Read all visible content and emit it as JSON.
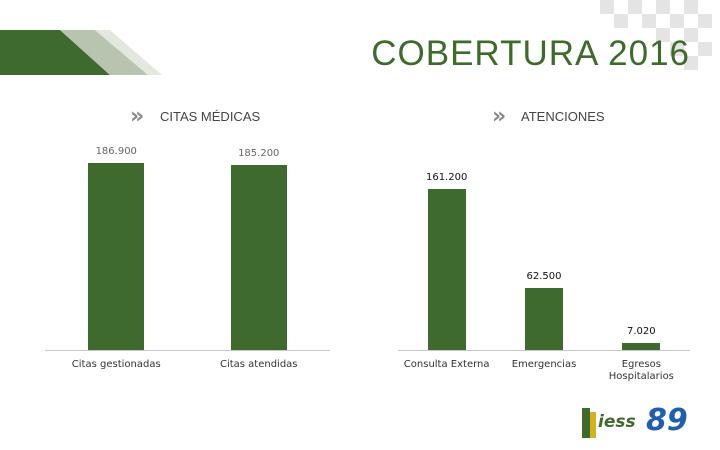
{
  "slide_title": "COBERTURA 2016",
  "logo": {
    "name": "iess",
    "number": "89"
  },
  "chart_data": [
    {
      "type": "bar",
      "title": "CITAS MÉDICAS",
      "color": "#3e6a2d",
      "categories": [
        "Citas gestionadas",
        "Citas atendidas"
      ],
      "values": [
        186900,
        185200
      ],
      "value_labels": [
        "186.900",
        "185.200"
      ],
      "ylim": [
        0,
        200000
      ]
    },
    {
      "type": "bar",
      "title": "ATENCIONES",
      "color": "#3e6a2d",
      "categories": [
        "Consulta Externa",
        "Emergencias",
        "Egresos Hospitalarios"
      ],
      "values": [
        161200,
        62500,
        7020
      ],
      "value_labels": [
        "161.200",
        "62.500",
        "7.020"
      ],
      "ylim": [
        0,
        200000
      ]
    }
  ]
}
